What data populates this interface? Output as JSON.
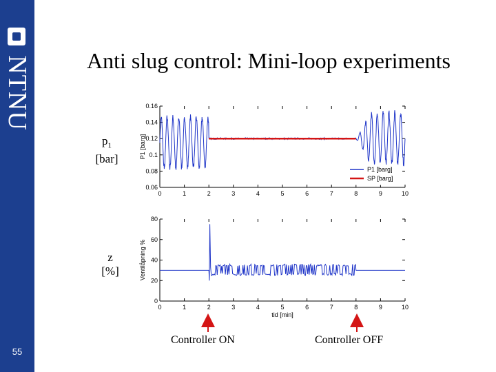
{
  "slide": {
    "title": "Anti slug control: Mini-loop experiments",
    "page_number": "55",
    "logo_text": "NTNU",
    "brand_color": "#1c3f8f"
  },
  "labels": {
    "p1_line1": "p",
    "p1_sub": "1",
    "p1_line2": "[bar]",
    "z_line1": "z",
    "z_line2": "[%]",
    "controller_on": "Controller ON",
    "controller_off": "Controller OFF"
  },
  "chart_data": [
    {
      "type": "line",
      "name": "pressure",
      "ylabel": "P1 [barg]",
      "xlabel": "",
      "xlim": [
        0,
        10
      ],
      "ylim": [
        0.06,
        0.16
      ],
      "xticks": [
        "0",
        "1",
        "2",
        "3",
        "4",
        "5",
        "6",
        "7",
        "8",
        "9",
        "10"
      ],
      "yticks": [
        "0.06",
        "0.08",
        "0.1",
        "0.12",
        "0.14",
        "0.16"
      ],
      "legend_position": "bottom-right",
      "series": [
        {
          "name": "P1 [barg]",
          "color": "#1f35c8",
          "controller_on": 2.0,
          "controller_off": 8.0,
          "setpoint": 0.12,
          "osc_min": 0.08,
          "osc_max": 0.15
        },
        {
          "name": "SP [barg]",
          "color": "#d41515",
          "x": [
            2.0,
            8.0
          ],
          "values": [
            0.12,
            0.12
          ]
        }
      ]
    },
    {
      "type": "line",
      "name": "valve",
      "ylabel": "Ventilåpning %",
      "xlabel": "tid [min]",
      "xlim": [
        0,
        10
      ],
      "ylim": [
        0,
        80
      ],
      "xticks": [
        "0",
        "1",
        "2",
        "3",
        "4",
        "5",
        "6",
        "7",
        "8",
        "9",
        "10"
      ],
      "yticks": [
        "0",
        "20",
        "40",
        "60",
        "80"
      ],
      "series": [
        {
          "name": "z",
          "color": "#1f35c8",
          "baseline": 30,
          "spike_high": 75,
          "spike_low": 20,
          "band_low": 25,
          "band_high": 36,
          "controller_on": 2.0,
          "controller_off": 8.0
        }
      ]
    }
  ]
}
